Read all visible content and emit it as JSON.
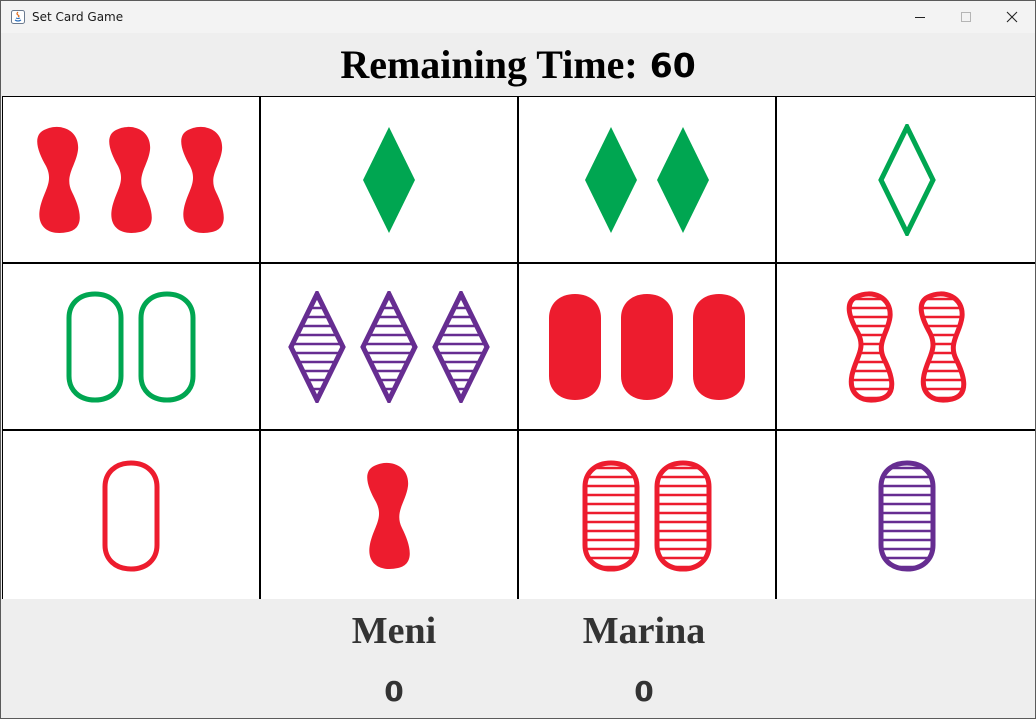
{
  "window": {
    "title": "Set Card Game",
    "icon": "java-app-icon",
    "controls": [
      "minimize-icon",
      "maximize-icon",
      "close-icon"
    ]
  },
  "timer": {
    "label": "Remaining Time:",
    "value": "60"
  },
  "colors": {
    "red": "#ed1c2e",
    "green": "#00a651",
    "purple": "#662d91",
    "card_bg": "#ffffff",
    "panel_bg": "#eeeeee"
  },
  "cards": [
    {
      "count": 3,
      "shape": "squiggle",
      "fill": "solid",
      "color": "red"
    },
    {
      "count": 1,
      "shape": "diamond",
      "fill": "solid",
      "color": "green"
    },
    {
      "count": 2,
      "shape": "diamond",
      "fill": "solid",
      "color": "green"
    },
    {
      "count": 1,
      "shape": "diamond",
      "fill": "open",
      "color": "green"
    },
    {
      "count": 2,
      "shape": "oval",
      "fill": "open",
      "color": "green"
    },
    {
      "count": 3,
      "shape": "diamond",
      "fill": "striped",
      "color": "purple"
    },
    {
      "count": 3,
      "shape": "oval",
      "fill": "solid",
      "color": "red"
    },
    {
      "count": 2,
      "shape": "squiggle",
      "fill": "striped",
      "color": "red"
    },
    {
      "count": 1,
      "shape": "oval",
      "fill": "open",
      "color": "red"
    },
    {
      "count": 1,
      "shape": "squiggle",
      "fill": "solid",
      "color": "red"
    },
    {
      "count": 2,
      "shape": "oval",
      "fill": "striped",
      "color": "red"
    },
    {
      "count": 1,
      "shape": "oval",
      "fill": "striped",
      "color": "purple"
    }
  ],
  "players": [
    {
      "name": "Meni",
      "score": "0"
    },
    {
      "name": "Marina",
      "score": "0"
    }
  ]
}
